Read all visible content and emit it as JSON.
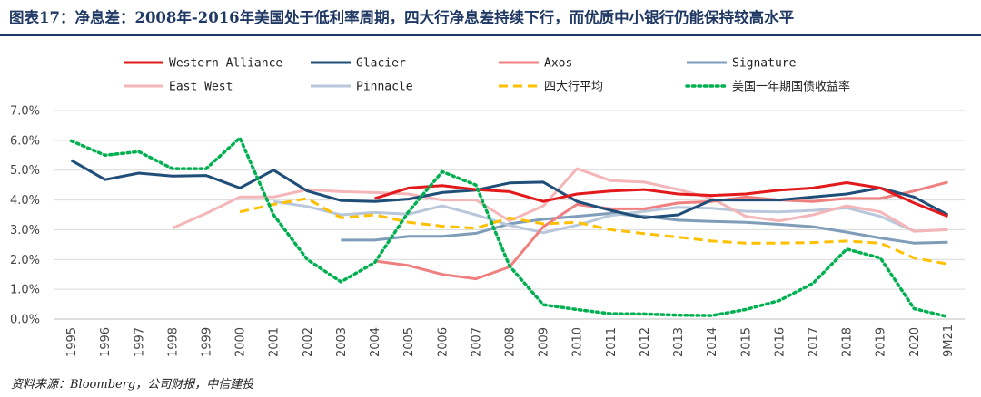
{
  "title": "图表17：净息差：2008年-2016年美国处于低利率周期，四大行净息差持续下行，而优质中小银行仍能保持较高水平",
  "source": "资料来源：Bloomberg，公司财报，中信建投",
  "chart_data": {
    "type": "line",
    "categories": [
      "1995",
      "1996",
      "1997",
      "1998",
      "1999",
      "2000",
      "2001",
      "2002",
      "2003",
      "2004",
      "2005",
      "2006",
      "2007",
      "2008",
      "2009",
      "2010",
      "2011",
      "2012",
      "2013",
      "2014",
      "2015",
      "2016",
      "2017",
      "2018",
      "2019",
      "2020",
      "9M21"
    ],
    "ylim": [
      0,
      7
    ],
    "yticks": [
      "0.0%",
      "1.0%",
      "2.0%",
      "3.0%",
      "4.0%",
      "5.0%",
      "6.0%",
      "7.0%"
    ],
    "grid": "horizontal",
    "legend": "top",
    "series": [
      {
        "name": "Western Alliance",
        "color": "#e31a1c",
        "dash": "solid",
        "values": [
          null,
          null,
          null,
          null,
          null,
          null,
          null,
          null,
          null,
          4.05,
          4.4,
          4.48,
          4.35,
          4.28,
          3.95,
          4.2,
          4.3,
          4.35,
          4.2,
          4.15,
          4.2,
          4.33,
          4.4,
          4.58,
          4.4,
          3.9,
          3.45
        ]
      },
      {
        "name": "Glacier",
        "color": "#1f4e79",
        "dash": "solid",
        "values": [
          5.33,
          4.68,
          4.9,
          4.8,
          4.82,
          4.4,
          5.0,
          4.3,
          3.98,
          3.95,
          4.03,
          4.25,
          4.33,
          4.57,
          4.6,
          3.95,
          3.65,
          3.4,
          3.5,
          4.0,
          4.0,
          4.0,
          4.1,
          4.2,
          4.4,
          4.1,
          3.5
        ]
      },
      {
        "name": "Axos",
        "color": "#f08080",
        "dash": "solid",
        "values": [
          null,
          null,
          null,
          null,
          null,
          null,
          null,
          null,
          null,
          1.95,
          1.8,
          1.5,
          1.35,
          1.75,
          3.1,
          3.85,
          3.7,
          3.7,
          3.9,
          3.95,
          4.1,
          4.0,
          3.95,
          4.05,
          4.05,
          4.3,
          4.6
        ]
      },
      {
        "name": "Signature",
        "color": "#7f9db9",
        "dash": "solid",
        "values": [
          null,
          null,
          null,
          null,
          null,
          null,
          null,
          null,
          2.65,
          2.65,
          2.78,
          2.78,
          2.88,
          3.2,
          3.35,
          3.45,
          3.55,
          3.45,
          3.32,
          3.28,
          3.25,
          3.18,
          3.1,
          2.92,
          2.72,
          2.55,
          2.58
        ]
      },
      {
        "name": "East West",
        "color": "#f4b6b8",
        "dash": "solid",
        "values": [
          null,
          null,
          null,
          3.05,
          3.55,
          4.1,
          4.1,
          4.35,
          4.28,
          4.25,
          4.2,
          4.0,
          4.0,
          3.3,
          3.8,
          5.05,
          4.65,
          4.6,
          4.35,
          4.05,
          3.45,
          3.3,
          3.5,
          3.8,
          3.6,
          2.95,
          3.0
        ]
      },
      {
        "name": "Pinnacle",
        "color": "#b8c7d9",
        "dash": "solid",
        "values": [
          null,
          null,
          null,
          null,
          null,
          null,
          3.95,
          3.78,
          3.5,
          3.58,
          3.52,
          3.8,
          3.5,
          3.15,
          2.9,
          3.15,
          3.48,
          3.62,
          3.75,
          3.72,
          3.62,
          3.6,
          3.65,
          3.73,
          3.45,
          2.95,
          3.0
        ]
      },
      {
        "name": "四大行平均",
        "color": "#ffc000",
        "dash": "dashed",
        "values": [
          null,
          null,
          null,
          null,
          null,
          3.6,
          3.85,
          4.05,
          3.4,
          3.5,
          3.25,
          3.12,
          3.05,
          3.4,
          3.2,
          3.25,
          3.0,
          2.87,
          2.75,
          2.62,
          2.55,
          2.55,
          2.57,
          2.62,
          2.55,
          2.05,
          1.85
        ]
      },
      {
        "name": "美国一年期国债收益率",
        "color": "#00b050",
        "dash": "dotted",
        "values": [
          5.98,
          5.5,
          5.62,
          5.05,
          5.05,
          6.08,
          3.5,
          2.0,
          1.25,
          1.9,
          3.6,
          4.95,
          4.5,
          1.78,
          0.48,
          0.32,
          0.18,
          0.17,
          0.13,
          0.12,
          0.32,
          0.62,
          1.2,
          2.35,
          2.05,
          0.35,
          0.08
        ]
      }
    ]
  }
}
